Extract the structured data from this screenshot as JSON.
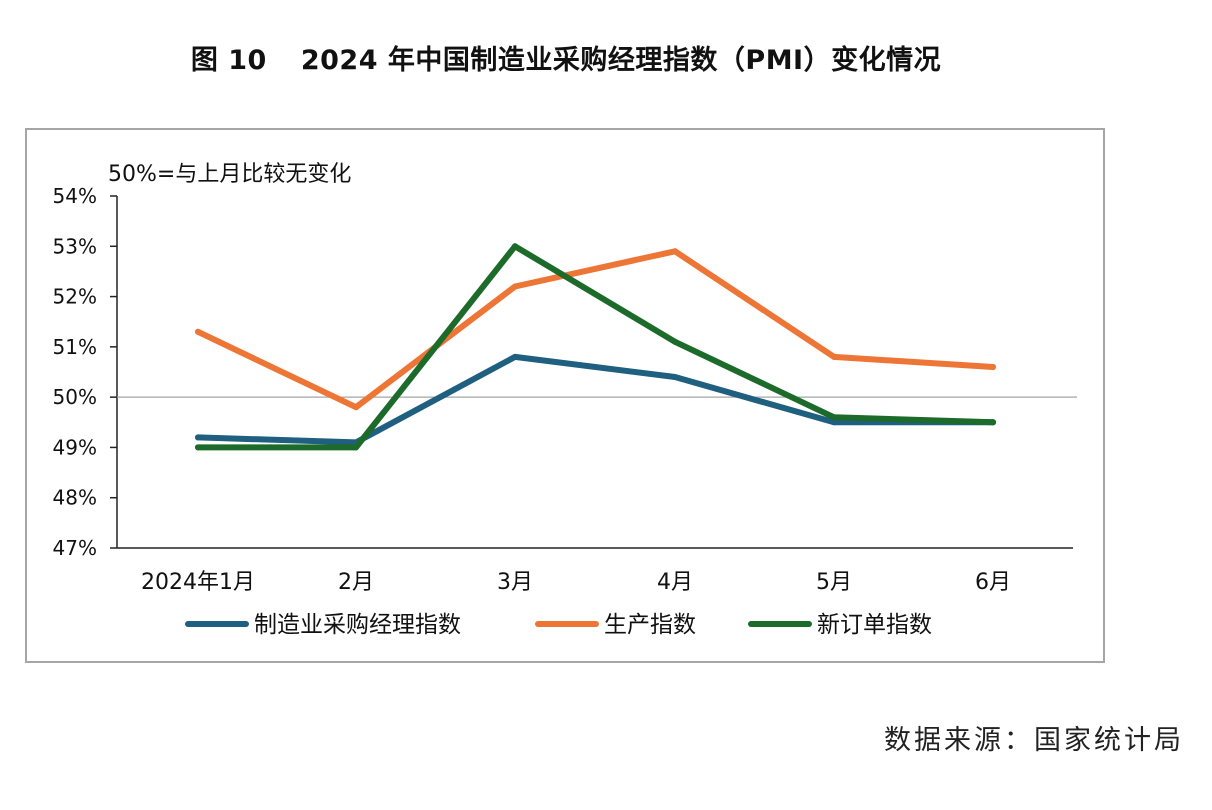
{
  "figure": {
    "number": "图 10",
    "title": "2024 年中国制造业采购经理指数（PMI）变化情况"
  },
  "source": "数据来源：国家统计局",
  "chart_data": {
    "type": "line",
    "annotation": "50%=与上月比较无变化",
    "categories": [
      "2024年1月",
      "2月",
      "3月",
      "4月",
      "5月",
      "6月"
    ],
    "y_ticks": [
      "47%",
      "48%",
      "49%",
      "50%",
      "51%",
      "52%",
      "53%",
      "54%"
    ],
    "ylim": [
      47,
      54
    ],
    "reference_line": 50,
    "reference_color": "#a6a6a6",
    "legend_position": "bottom",
    "grid": false,
    "series": [
      {
        "name": "制造业采购经理指数",
        "color": "#1f5f80",
        "values": [
          49.2,
          49.1,
          50.8,
          50.4,
          49.5,
          49.5
        ]
      },
      {
        "name": "生产指数",
        "color": "#ed7536",
        "values": [
          51.3,
          49.8,
          52.2,
          52.9,
          50.8,
          50.6
        ]
      },
      {
        "name": "新订单指数",
        "color": "#1c6b2b",
        "values": [
          49.0,
          49.0,
          53.0,
          51.1,
          49.6,
          49.5
        ]
      }
    ]
  }
}
